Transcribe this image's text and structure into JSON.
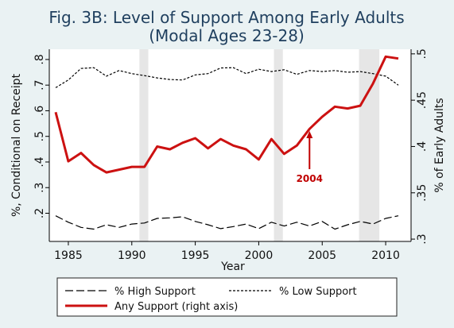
{
  "chart_data": {
    "type": "line",
    "title": "Fig. 3B: Level of Support Among Early Adults",
    "subtitle": "(Modal Ages 23-28)",
    "xlabel": "Year",
    "ylabel_left": "%, Conditional on Receipt",
    "ylabel_right": "% of Early Adults",
    "xlim": [
      1983.5,
      2012
    ],
    "ylim_left": [
      0.09,
      0.84
    ],
    "ylim_right": [
      0.2975,
      0.505
    ],
    "x_ticks": [
      "1985",
      "1990",
      "1995",
      "2000",
      "2005",
      "2010"
    ],
    "y_left_ticks": [
      ".2",
      ".3",
      ".4",
      ".5",
      ".6",
      ".7",
      ".8"
    ],
    "y_right_ticks": [
      ".3",
      ".35",
      ".4",
      ".45",
      ".5"
    ],
    "grid": false,
    "legend_position": "bottom",
    "recession_bands": [
      [
        1990.6,
        1991.3
      ],
      [
        2001.2,
        2001.9
      ],
      [
        2007.9,
        2009.5
      ]
    ],
    "x": [
      1984,
      1985,
      1986,
      1987,
      1988,
      1989,
      1990,
      1991,
      1992,
      1993,
      1994,
      1995,
      1996,
      1997,
      1998,
      1999,
      2000,
      2001,
      2002,
      2003,
      2004,
      2005,
      2006,
      2007,
      2008,
      2009,
      2010,
      2011
    ],
    "series": [
      {
        "name": "% High Support",
        "axis": "left",
        "color": "#000000",
        "dash": "long",
        "values": [
          0.19,
          0.165,
          0.145,
          0.138,
          0.155,
          0.145,
          0.158,
          0.162,
          0.18,
          0.182,
          0.186,
          0.168,
          0.155,
          0.14,
          0.148,
          0.158,
          0.14,
          0.165,
          0.15,
          0.165,
          0.15,
          0.168,
          0.138,
          0.155,
          0.168,
          0.158,
          0.18,
          0.19
        ]
      },
      {
        "name": "% Low Support",
        "axis": "left",
        "color": "#000000",
        "dash": "short",
        "values": [
          0.69,
          0.72,
          0.765,
          0.768,
          0.735,
          0.757,
          0.745,
          0.737,
          0.728,
          0.722,
          0.72,
          0.74,
          0.745,
          0.767,
          0.768,
          0.745,
          0.762,
          0.753,
          0.76,
          0.742,
          0.757,
          0.753,
          0.757,
          0.75,
          0.753,
          0.745,
          0.735,
          0.7
        ]
      },
      {
        "name": "Any Support (right axis)",
        "axis": "right",
        "color": "#cc1111",
        "dash": "solid",
        "values": [
          0.437,
          0.384,
          0.393,
          0.38,
          0.372,
          0.375,
          0.378,
          0.378,
          0.4,
          0.397,
          0.404,
          0.409,
          0.398,
          0.408,
          0.401,
          0.397,
          0.386,
          0.408,
          0.392,
          0.401,
          0.419,
          0.432,
          0.443,
          0.441,
          0.444,
          0.468,
          0.497,
          0.495
        ]
      }
    ],
    "annotations": [
      {
        "text": "2004",
        "x": 2004
      }
    ]
  }
}
